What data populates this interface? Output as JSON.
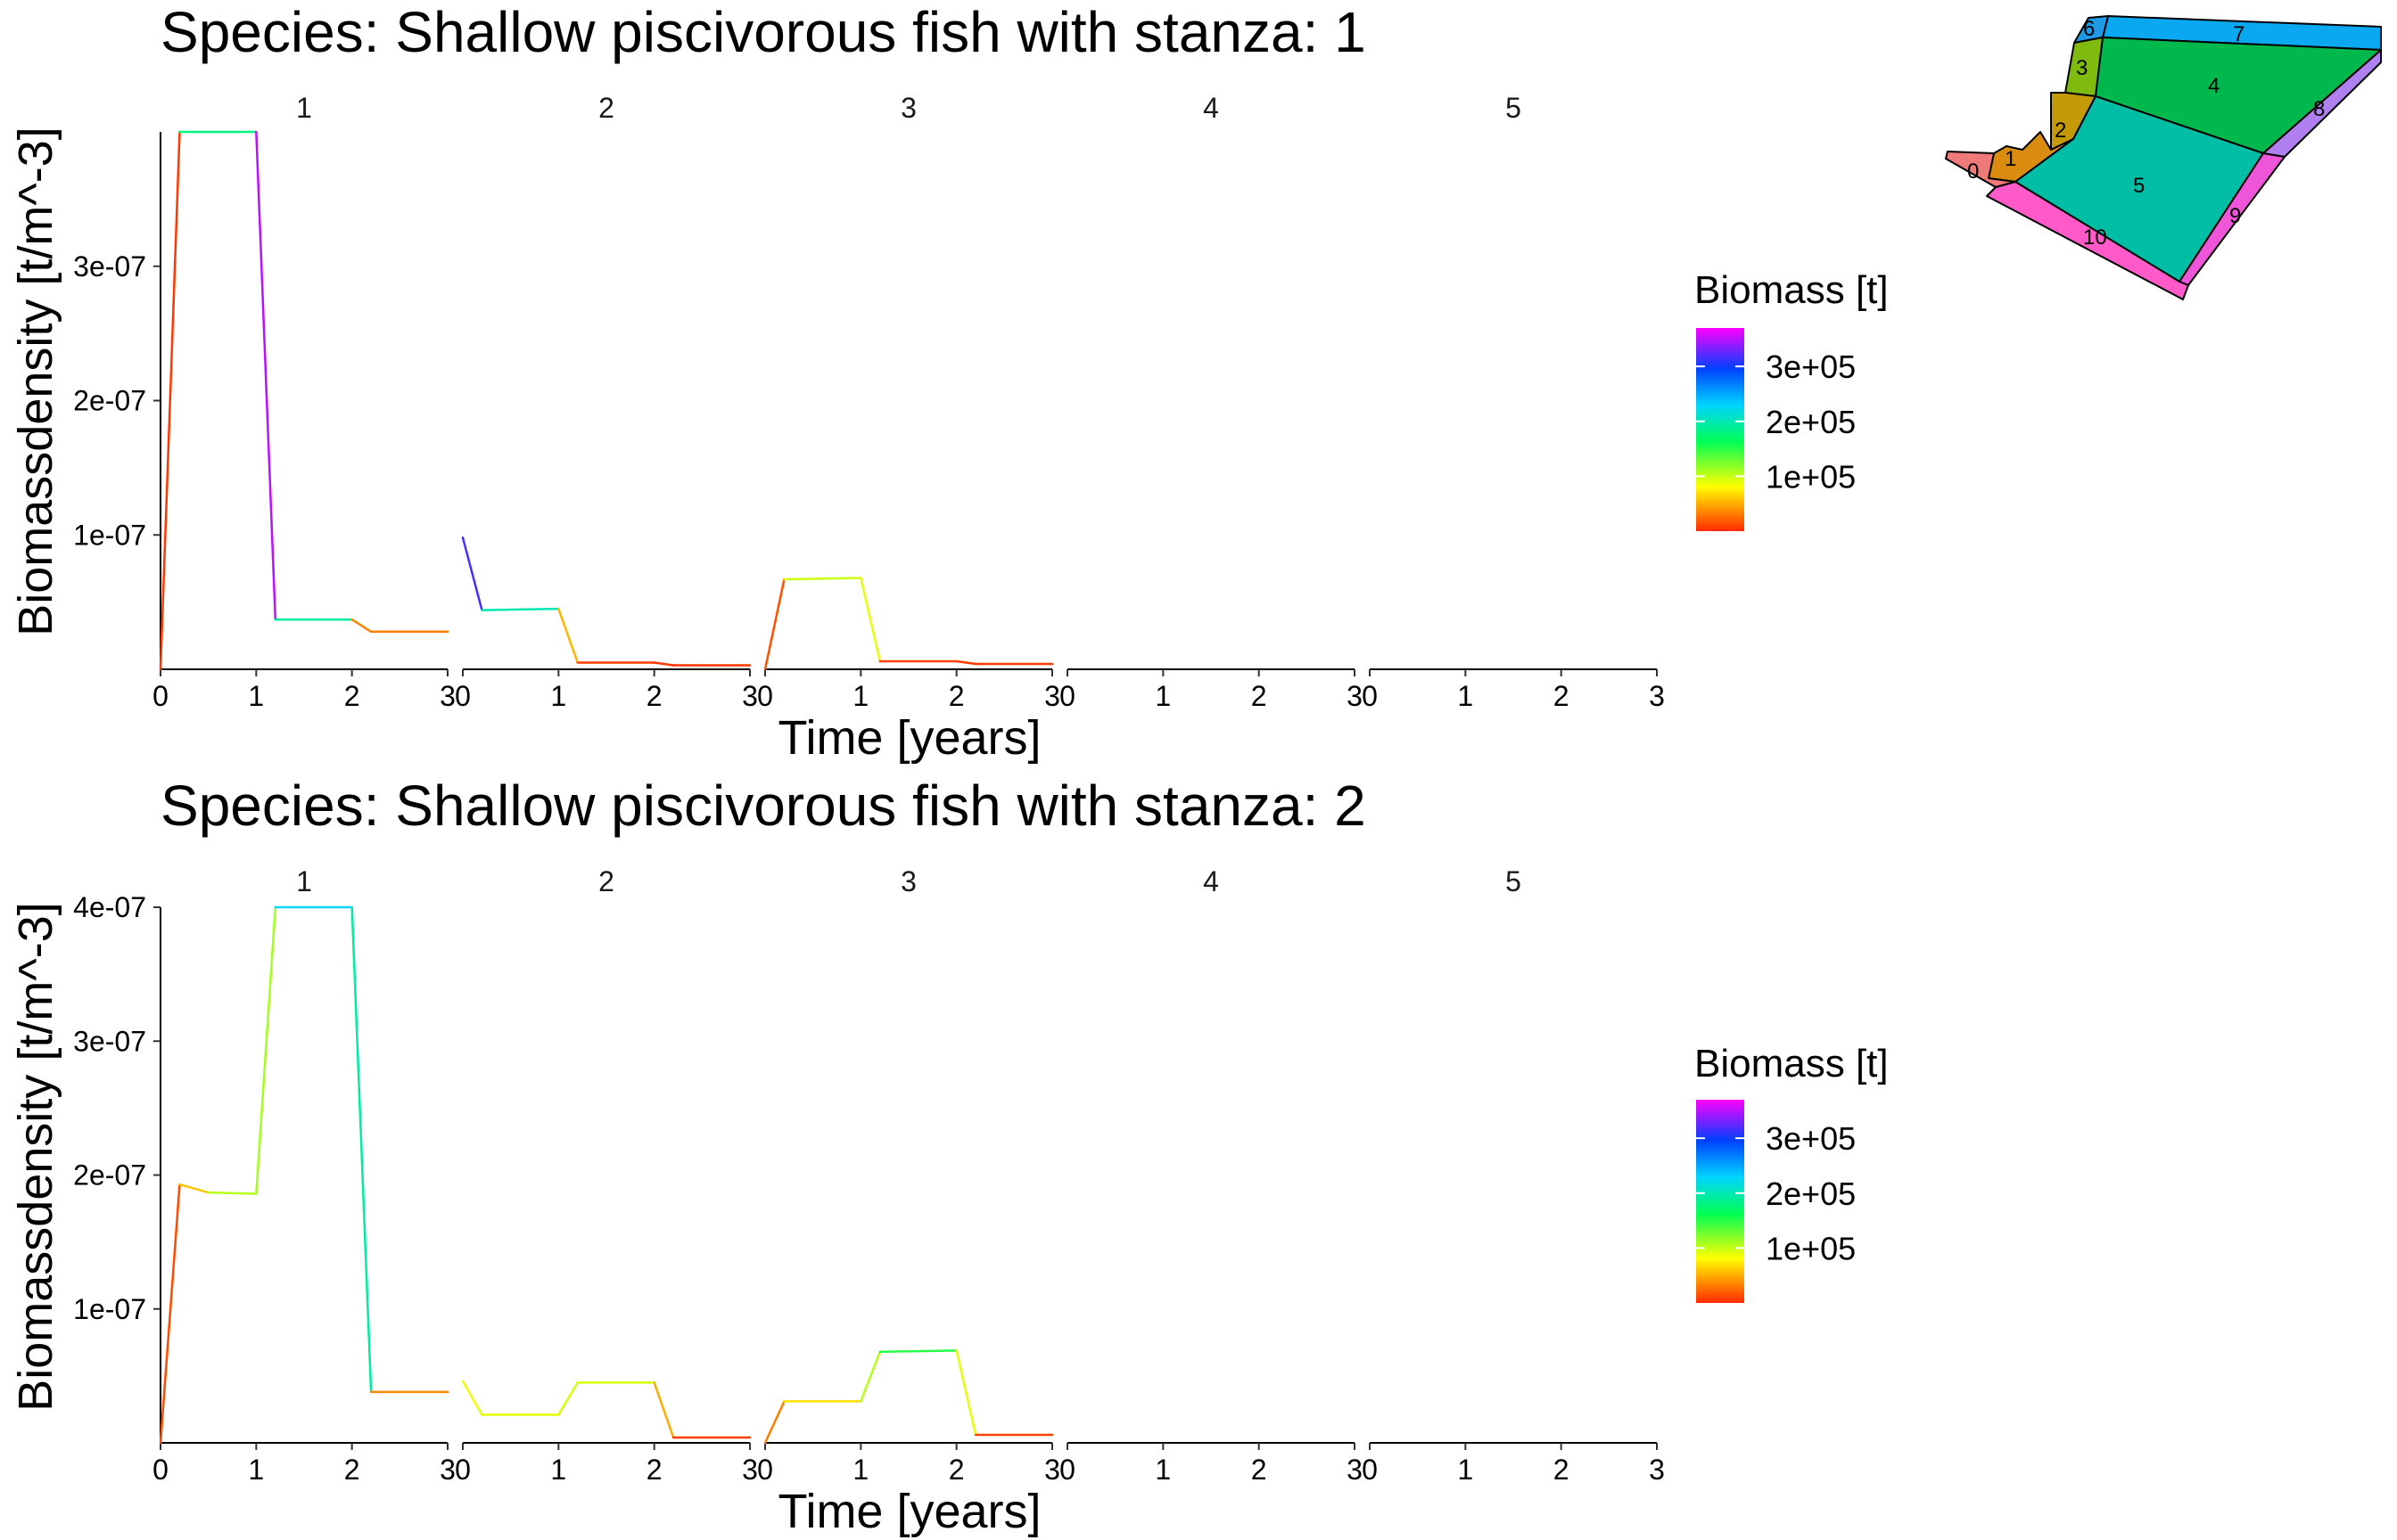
{
  "chart_data": [
    {
      "type": "line",
      "title": "Species: Shallow piscivorous fish with stanza: 1",
      "xlabel": "Time [years]",
      "ylabel": "Biomassdensity [t/m^-3]",
      "xlim": [
        0,
        3
      ],
      "ylim": [
        0,
        4e-07
      ],
      "x_ticks": [
        0,
        1,
        2,
        3
      ],
      "y_ticks": [
        1e-07,
        2e-07,
        3e-07
      ],
      "y_tick_labels": [
        "1e-07",
        "2e-07",
        "3e-07"
      ],
      "panels": [
        {
          "label": "1",
          "points": [
            [
              0,
              0,
              5000
            ],
            [
              0.2,
              4e-07,
              5000
            ],
            [
              1.0,
              4e-07,
              350000
            ],
            [
              1.2,
              3.7e-08,
              350000
            ],
            [
              2.0,
              3.7e-08,
              35000
            ],
            [
              2.2,
              2.8e-08,
              35000
            ],
            [
              3.0,
              2.8e-08,
              30000
            ]
          ]
        },
        {
          "label": "2",
          "points": [
            [
              0,
              9.8e-08,
              330000
            ],
            [
              0.2,
              4.4e-08,
              300000
            ],
            [
              1.0,
              4.5e-08,
              100000
            ],
            [
              1.2,
              5e-09,
              8000
            ],
            [
              2.0,
              5e-09,
              5000
            ],
            [
              2.2,
              3e-09,
              5000
            ],
            [
              3.0,
              3e-09,
              5000
            ]
          ]
        },
        {
          "label": "3",
          "points": [
            [
              0,
              0,
              5000
            ],
            [
              0.2,
              6.7e-08,
              25000
            ],
            [
              1.0,
              6.8e-08,
              170000
            ],
            [
              1.2,
              6e-09,
              10000
            ],
            [
              2.0,
              6e-09,
              8000
            ],
            [
              2.2,
              4e-09,
              6000
            ],
            [
              3.0,
              4e-09,
              6000
            ]
          ]
        },
        {
          "label": "4",
          "points": []
        },
        {
          "label": "5",
          "points": []
        }
      ],
      "legend": {
        "title": "Biomass [t]",
        "ticks": [
          100000,
          200000,
          300000
        ],
        "tick_labels": [
          "1e+05",
          "2e+05",
          "3e+05"
        ],
        "range": [
          0,
          370000
        ]
      }
    },
    {
      "type": "line",
      "title": "Species: Shallow piscivorous fish with stanza: 2",
      "xlabel": "Time [years]",
      "ylabel": "Biomassdensity [t/m^-3]",
      "xlim": [
        0,
        3
      ],
      "ylim": [
        0,
        4e-07
      ],
      "x_ticks": [
        0,
        1,
        2,
        3
      ],
      "y_ticks": [
        1e-07,
        2e-07,
        3e-07,
        4e-07
      ],
      "y_tick_labels": [
        "1e-07",
        "2e-07",
        "3e-07",
        "4e-07"
      ],
      "panels": [
        {
          "label": "1",
          "points": [
            [
              0,
              0,
              5000
            ],
            [
              0.2,
              1.93e-07,
              20000
            ],
            [
              0.5,
              1.87e-07,
              100000
            ],
            [
              1.0,
              1.86e-07,
              110000
            ],
            [
              1.2,
              4e-07,
              110000
            ],
            [
              2.0,
              4e-07,
              350000
            ],
            [
              2.2,
              3.8e-08,
              35000
            ],
            [
              3.0,
              3.8e-08,
              35000
            ]
          ]
        },
        {
          "label": "2",
          "points": [
            [
              0,
              4.6e-08,
              85000
            ],
            [
              0.2,
              2.1e-08,
              90000
            ],
            [
              1.0,
              2.1e-08,
              90000
            ],
            [
              1.2,
              4.5e-08,
              100000
            ],
            [
              2.0,
              4.5e-08,
              90000
            ],
            [
              2.2,
              4e-09,
              8000
            ],
            [
              3.0,
              4e-09,
              8000
            ]
          ]
        },
        {
          "label": "3",
          "points": [
            [
              0,
              0,
              5000
            ],
            [
              0.2,
              3.1e-08,
              60000
            ],
            [
              1.0,
              3.1e-08,
              80000
            ],
            [
              1.2,
              6.8e-08,
              130000
            ],
            [
              2.0,
              6.9e-08,
              170000
            ],
            [
              2.2,
              6e-09,
              10000
            ],
            [
              3.0,
              6e-09,
              10000
            ]
          ]
        },
        {
          "label": "4",
          "points": []
        },
        {
          "label": "5",
          "points": []
        }
      ],
      "legend": {
        "title": "Biomass [t]",
        "ticks": [
          100000,
          200000,
          300000
        ],
        "tick_labels": [
          "1e+05",
          "2e+05",
          "3e+05"
        ],
        "range": [
          0,
          370000
        ]
      }
    }
  ],
  "inset_map": {
    "box_labels": [
      "0",
      "1",
      "2",
      "3",
      "4",
      "5",
      "6",
      "7",
      "8",
      "9",
      "10"
    ],
    "box_colors": {
      "0": "#ee7a7a",
      "1": "#d98c10",
      "2": "#c49a08",
      "3": "#7fba0f",
      "4": "#00b84c",
      "5": "#00bda6",
      "6": "#1e9ae6",
      "7": "#0aa8f0",
      "8": "#b07ff0",
      "9": "#ee55d8",
      "10": "#ff5ac8"
    }
  },
  "colors": {
    "ramp": [
      "#ff2a00",
      "#ffff00",
      "#00ff55",
      "#00d4ff",
      "#0040ff",
      "#ff00ff"
    ]
  }
}
